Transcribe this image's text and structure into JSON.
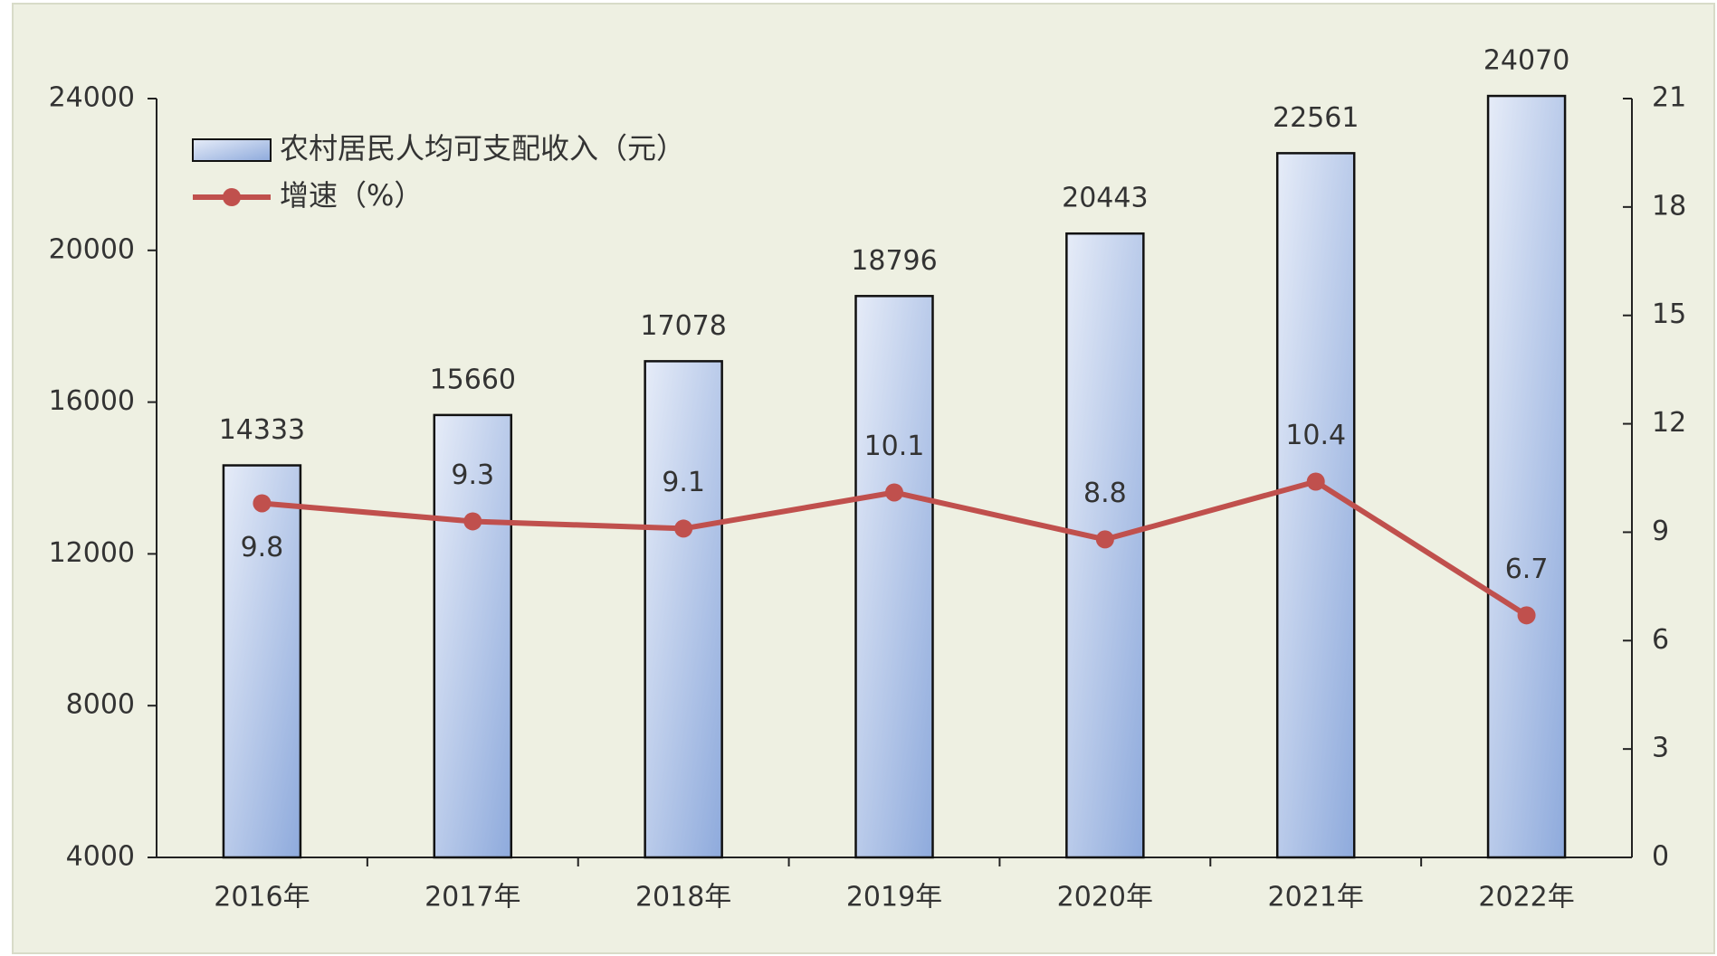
{
  "chart_data": {
    "type": "combo",
    "categories": [
      "2016年",
      "2017年",
      "2018年",
      "2019年",
      "2020年",
      "2021年",
      "2022年"
    ],
    "series": [
      {
        "name": "农村居民人均可支配收入（元）",
        "type": "bar",
        "color": "#8faadc",
        "values": [
          14333,
          15660,
          17078,
          18796,
          20443,
          22561,
          24070
        ]
      },
      {
        "name": "增速（%）",
        "type": "line",
        "axis": "y2",
        "color": "#c0504d",
        "values": [
          9.8,
          9.3,
          9.1,
          10.1,
          8.8,
          10.4,
          6.7
        ]
      }
    ],
    "ylim": [
      4000,
      24000
    ],
    "yticks": [
      4000,
      8000,
      12000,
      16000,
      20000,
      24000
    ],
    "y2lim": [
      0,
      21
    ],
    "y2ticks": [
      0,
      3,
      6,
      9,
      12,
      15,
      18,
      21
    ],
    "legend": "top-left"
  }
}
